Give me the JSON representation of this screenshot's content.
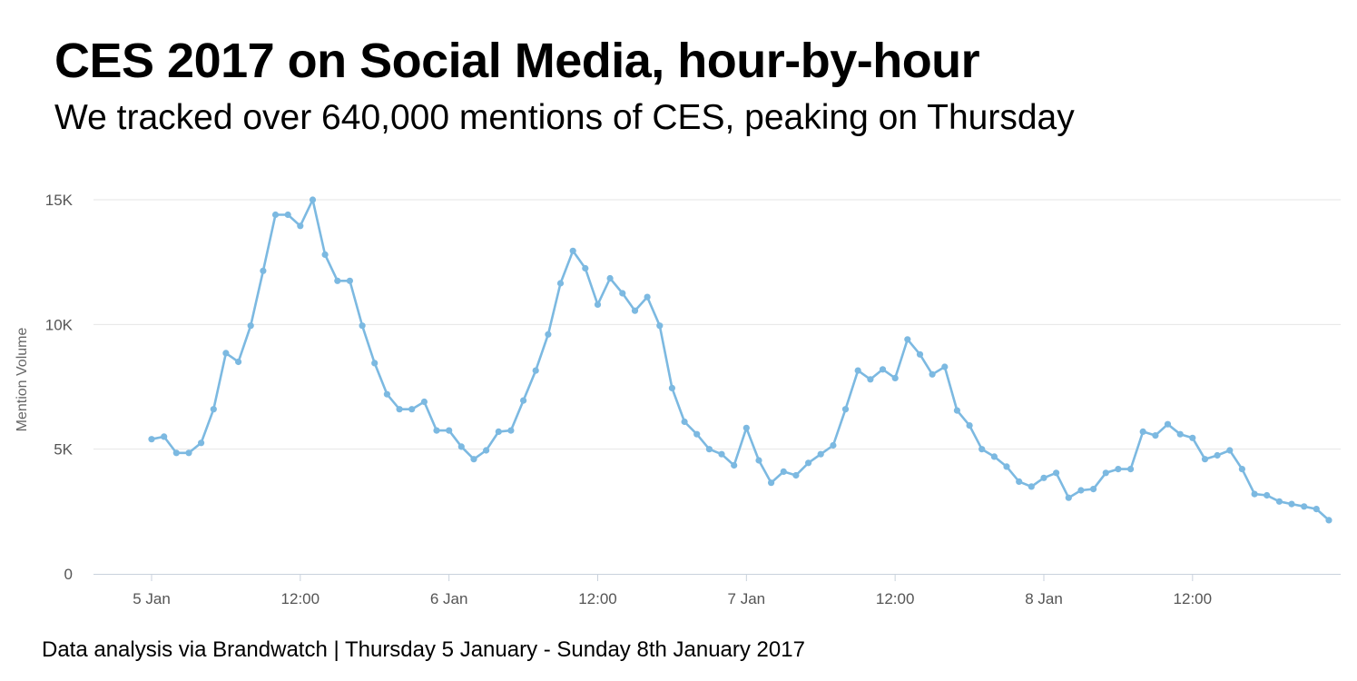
{
  "header": {
    "title": "CES 2017 on Social Media, hour-by-hour",
    "subtitle": "We tracked over 640,000 mentions of CES, peaking on Thursday"
  },
  "footer": {
    "source": "Data analysis via Brandwatch | Thursday 5 January - Sunday 8th January 2017"
  },
  "chart_data": {
    "type": "line",
    "title": "CES 2017 on Social Media, hour-by-hour",
    "subtitle": "We tracked over 640,000 mentions of CES, peaking on Thursday",
    "xlabel": "",
    "ylabel": "Mention Volume",
    "x_unit": "hours since 5 Jan 00:00",
    "x_tick_labels": [
      {
        "x": 0,
        "label": "5 Jan"
      },
      {
        "x": 12,
        "label": "12:00"
      },
      {
        "x": 24,
        "label": "6 Jan"
      },
      {
        "x": 36,
        "label": "12:00"
      },
      {
        "x": 48,
        "label": "7 Jan"
      },
      {
        "x": 60,
        "label": "12:00"
      },
      {
        "x": 72,
        "label": "8 Jan"
      },
      {
        "x": 84,
        "label": "12:00"
      }
    ],
    "y_ticks": [
      {
        "value": 0,
        "label": "0"
      },
      {
        "value": 5000,
        "label": "5K"
      },
      {
        "value": 10000,
        "label": "10K"
      },
      {
        "value": 15000,
        "label": "15K"
      }
    ],
    "xlim": [
      -4.5,
      95.5
    ],
    "ylim": [
      0,
      15500
    ],
    "grid": true,
    "legend": "none",
    "color": "#7cb9e1",
    "series": [
      {
        "name": "Mention Volume",
        "x_start": 0,
        "x_step": 1,
        "values": [
          5400,
          5500,
          4850,
          4850,
          5250,
          6600,
          8850,
          8500,
          9950,
          12150,
          14400,
          14400,
          13950,
          15000,
          12800,
          11750,
          11750,
          9950,
          8450,
          7200,
          6600,
          6600,
          6900,
          5750,
          5750,
          5100,
          4600,
          4950,
          5700,
          5750,
          6950,
          8150,
          9600,
          11650,
          12950,
          12250,
          10800,
          11850,
          11250,
          10550,
          11100,
          9950,
          7450,
          6100,
          5600,
          5000,
          4800,
          4350,
          5850,
          4550,
          3650,
          4100,
          3950,
          4450,
          4800,
          5150,
          6600,
          8150,
          7800,
          8200,
          7850,
          9400,
          8800,
          8000,
          8300,
          6550,
          5950,
          5000,
          4700,
          4300,
          3700,
          3500,
          3850,
          4050,
          3050,
          3350,
          3400,
          4050,
          4200,
          4200,
          5700,
          5550,
          6000,
          5600,
          5450,
          4600,
          4750,
          4950,
          4200,
          3200,
          3150,
          2900,
          2800,
          2700,
          2600,
          2150
        ]
      }
    ]
  }
}
